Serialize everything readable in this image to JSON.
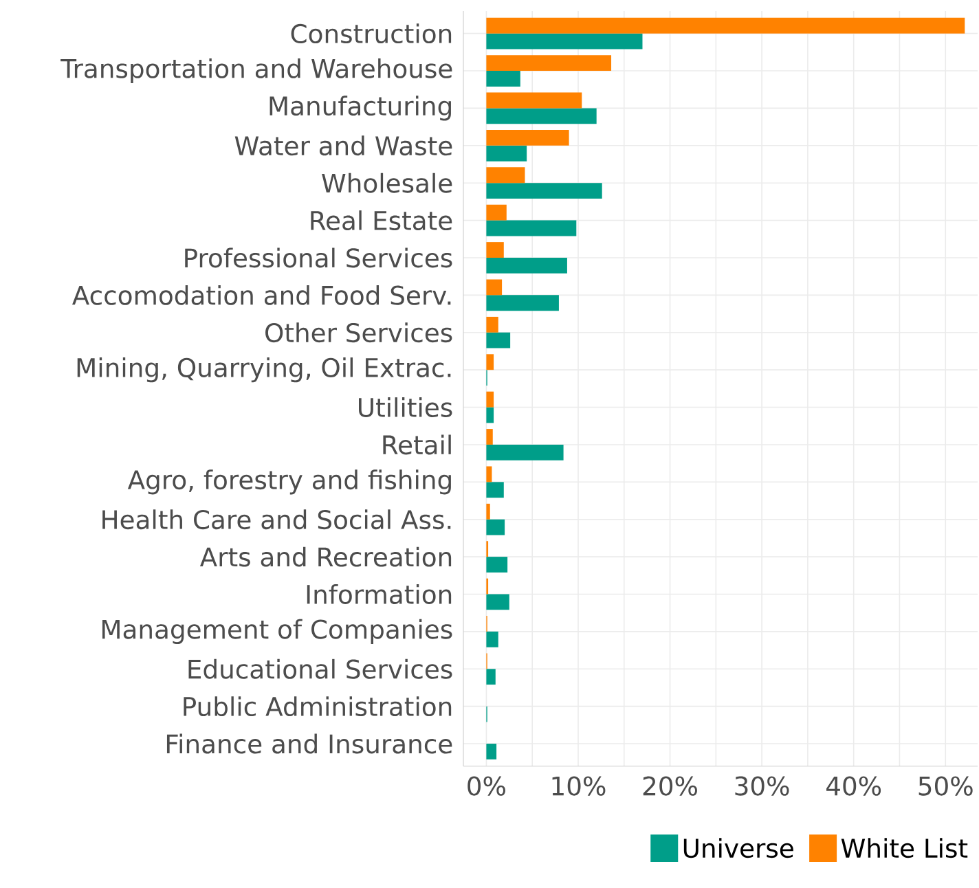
{
  "chart_data": {
    "type": "bar",
    "orientation": "horizontal",
    "categories": [
      "Construction",
      "Transportation and Warehouse",
      "Manufacturing",
      "Water and Waste",
      "Wholesale",
      "Real Estate",
      "Professional Services",
      "Accomodation and Food Serv.",
      "Other Services",
      "Mining, Quarrying, Oil Extrac.",
      "Utilities",
      "Retail",
      "Agro, forestry and fishing",
      "Health Care and Social Ass.",
      "Arts and Recreation",
      "Information",
      "Management of Companies",
      "Educational Services",
      "Public Administration",
      "Finance and Insurance"
    ],
    "series": [
      {
        "name": "Universe",
        "color": "#009e89",
        "values": [
          17.0,
          3.7,
          12.0,
          4.4,
          12.6,
          9.8,
          8.8,
          7.9,
          2.6,
          0.1,
          0.8,
          8.4,
          1.9,
          2.0,
          2.3,
          2.5,
          1.3,
          1.0,
          0.1,
          1.1
        ]
      },
      {
        "name": "White List",
        "color": "#ff8200",
        "values": [
          52.1,
          13.6,
          10.4,
          9.0,
          4.2,
          2.2,
          1.9,
          1.7,
          1.3,
          0.8,
          0.8,
          0.7,
          0.6,
          0.4,
          0.2,
          0.2,
          0.1,
          0.1,
          null,
          null
        ]
      }
    ],
    "xlim": [
      -2.5,
      53.5
    ],
    "xticks": [
      {
        "value": 0,
        "label": "0%"
      },
      {
        "value": 5,
        "label": null
      },
      {
        "value": 10,
        "label": "10%"
      },
      {
        "value": 15,
        "label": null
      },
      {
        "value": 20,
        "label": "20%"
      },
      {
        "value": 25,
        "label": null
      },
      {
        "value": 30,
        "label": "30%"
      },
      {
        "value": 35,
        "label": null
      },
      {
        "value": 40,
        "label": "40%"
      },
      {
        "value": 45,
        "label": null
      },
      {
        "value": 50,
        "label": "50%"
      }
    ],
    "grid": true,
    "legend": "bottom right"
  }
}
